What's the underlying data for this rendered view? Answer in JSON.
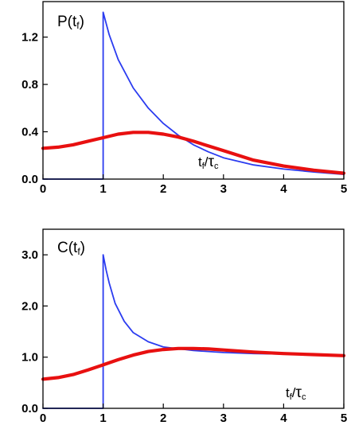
{
  "chart_data": [
    {
      "type": "line",
      "title": "",
      "panel_label": {
        "main": "P(t",
        "sub": "f",
        "close": ")"
      },
      "xlabel": {
        "t": "t",
        "f": "f",
        "slash": "/",
        "tau": "τ",
        "c": "c"
      },
      "ylabel": "",
      "xlim": [
        0,
        5
      ],
      "ylim": [
        0,
        1.5
      ],
      "x_ticks": [
        0,
        1,
        2,
        3,
        4,
        5
      ],
      "x_tick_labels": [
        "0",
        "1",
        "2",
        "3",
        "4",
        "5"
      ],
      "y_ticks": [
        0,
        0.4,
        0.8,
        1.2
      ],
      "y_tick_labels": [
        "0.0",
        "0.4",
        "0.8",
        "1.2"
      ],
      "grid": false,
      "series": [
        {
          "color": "#2b3cf0",
          "x": [
            0,
            0.5,
            1.0,
            1.0,
            1.1,
            1.25,
            1.5,
            1.75,
            2.0,
            2.25,
            2.5,
            2.75,
            3.0,
            3.5,
            4.0,
            4.5,
            5.0
          ],
          "values": [
            0,
            0,
            0,
            1.41,
            1.22,
            1.01,
            0.77,
            0.6,
            0.47,
            0.37,
            0.29,
            0.23,
            0.18,
            0.12,
            0.085,
            0.06,
            0.04
          ]
        },
        {
          "color": "#e81010",
          "x": [
            0,
            0.25,
            0.5,
            0.75,
            1.0,
            1.25,
            1.5,
            1.75,
            2.0,
            2.25,
            2.5,
            2.75,
            3.0,
            3.5,
            4.0,
            4.5,
            5.0
          ],
          "values": [
            0.26,
            0.27,
            0.29,
            0.32,
            0.35,
            0.38,
            0.395,
            0.395,
            0.38,
            0.355,
            0.32,
            0.28,
            0.24,
            0.16,
            0.11,
            0.075,
            0.05
          ]
        }
      ]
    },
    {
      "type": "line",
      "title": "",
      "panel_label": {
        "main": "C(t",
        "sub": "f",
        "close": ")"
      },
      "xlabel": {
        "t": "t",
        "f": "f",
        "slash": "/",
        "tau": "τ",
        "c": "c"
      },
      "ylabel": "",
      "xlim": [
        0,
        5
      ],
      "ylim": [
        0,
        3.5
      ],
      "x_ticks": [
        0,
        1,
        2,
        3,
        4,
        5
      ],
      "x_tick_labels": [
        "0",
        "1",
        "2",
        "3",
        "4",
        "5"
      ],
      "y_ticks": [
        0,
        1,
        2,
        3
      ],
      "y_tick_labels": [
        "0.0",
        "1.0",
        "2.0",
        "3.0"
      ],
      "grid": false,
      "series": [
        {
          "color": "#2b3cf0",
          "x": [
            0,
            0.5,
            1.0,
            1.0,
            1.05,
            1.1,
            1.2,
            1.35,
            1.5,
            1.75,
            2.0,
            2.5,
            3.0,
            3.5,
            4.0,
            4.5,
            5.0
          ],
          "values": [
            0,
            0,
            0,
            3.0,
            2.7,
            2.45,
            2.05,
            1.7,
            1.48,
            1.3,
            1.2,
            1.13,
            1.09,
            1.07,
            1.06,
            1.05,
            1.04
          ]
        },
        {
          "color": "#e81010",
          "x": [
            0,
            0.25,
            0.5,
            0.75,
            1.0,
            1.25,
            1.5,
            1.75,
            2.0,
            2.25,
            2.5,
            2.75,
            3.0,
            3.5,
            4.0,
            4.5,
            5.0
          ],
          "values": [
            0.57,
            0.6,
            0.66,
            0.75,
            0.85,
            0.95,
            1.04,
            1.11,
            1.15,
            1.17,
            1.17,
            1.16,
            1.14,
            1.1,
            1.07,
            1.05,
            1.03
          ]
        }
      ]
    }
  ]
}
